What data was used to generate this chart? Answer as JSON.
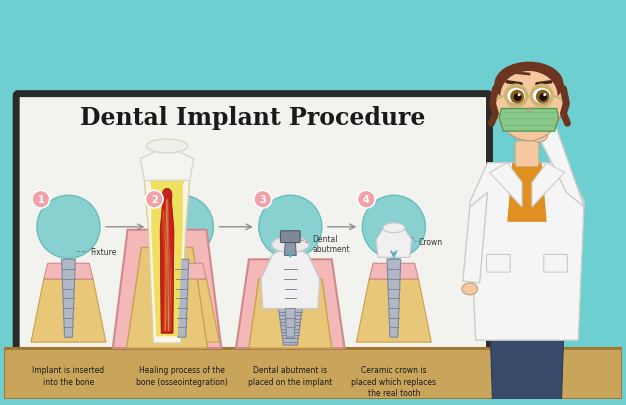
{
  "bg_color": "#6dcfcf",
  "board_bg": "#f2f2ee",
  "board_border": "#2a2a2a",
  "title": "Dental Implant Procedure",
  "title_fontsize": 17,
  "title_color": "#1a1a1a",
  "steps": [
    {
      "num": "1",
      "label": "Fixture",
      "desc": "Implant is inserted\ninto the bone"
    },
    {
      "num": "2",
      "label": "",
      "desc": "Healing process of the\nbone (osseointegration)"
    },
    {
      "num": "3",
      "label": "Dental\nabutment",
      "desc": "Dental abutment is\nplaced on the implant"
    },
    {
      "num": "4",
      "label": "Crown",
      "desc": "Ceramic crown is\nplaced which replaces\nthe real tooth"
    }
  ],
  "step_circle_color": "#f4a0a8",
  "step_oval_color": "#7ecece",
  "table_color": "#c8a55a",
  "table_edge": "#a07830",
  "gum_color": "#f4b8b8",
  "bone_color": "#e8c878",
  "bone_edge": "#c8a050",
  "tooth_enamel": "#f8f5e8",
  "tooth_dentin": "#f0e060",
  "tooth_pulp": "#c82020",
  "tooth_root_outer": "#f8f0e8",
  "implant_color": "#b0b8c8",
  "implant_edge": "#808898",
  "crown_color": "#f0f0f0",
  "doctor_coat": "#f5f5f5",
  "doctor_coat_edge": "#cccccc",
  "doctor_skin": "#f5c8a0",
  "doctor_hair": "#6b3520",
  "doctor_mask": "#88c888",
  "doctor_shirt": "#e09020",
  "glasses_color": "#c8b870",
  "pointer_color": "#d0d0d0"
}
